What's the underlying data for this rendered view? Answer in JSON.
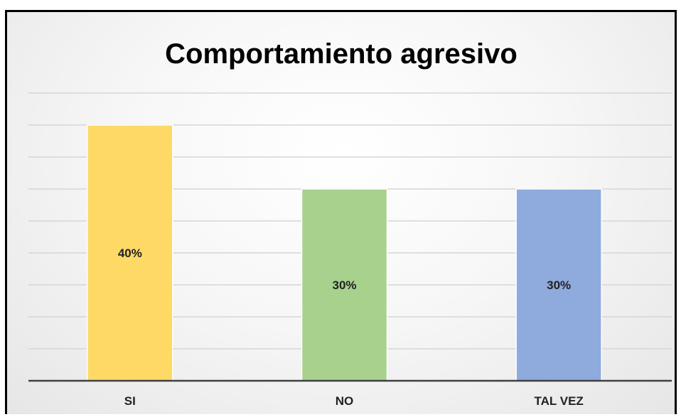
{
  "chart_data": {
    "type": "bar",
    "title": "Comportamiento agresivo",
    "categories": [
      "SI",
      "NO",
      "TAL VEZ"
    ],
    "values": [
      40,
      30,
      30
    ],
    "data_labels": [
      "40%",
      "30%",
      "30%"
    ],
    "ylim": [
      0,
      45
    ],
    "gridline_step": 5,
    "grid": true,
    "legend": "none",
    "colors": [
      "#FFD966",
      "#A9D18E",
      "#8FAADC"
    ]
  }
}
